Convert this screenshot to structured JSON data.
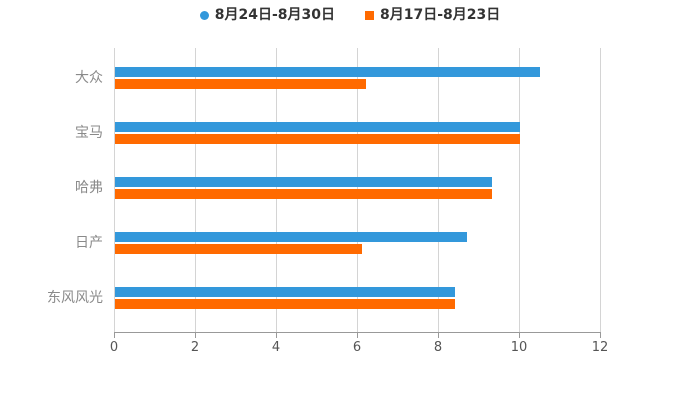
{
  "chart_data": {
    "type": "bar",
    "orientation": "horizontal",
    "title": "",
    "xlabel": "",
    "ylabel": "",
    "categories": [
      "大众",
      "宝马",
      "哈弗",
      "日产",
      "东风风光"
    ],
    "series": [
      {
        "name": "8月24日-8月30日",
        "marker": "circle",
        "color": "#3398DB",
        "values": [
          10.5,
          10.0,
          9.3,
          8.7,
          8.4
        ]
      },
      {
        "name": "8月17日-8月23日",
        "marker": "square",
        "color": "#FF6A00",
        "values": [
          6.2,
          10.0,
          9.3,
          6.1,
          8.4
        ]
      }
    ],
    "xlim": [
      0,
      12
    ],
    "x_ticks": [
      0,
      2,
      4,
      6,
      8,
      10,
      12
    ],
    "grid": true,
    "legend_position": "top",
    "style": {
      "background": "#FFFFFF",
      "grid_color": "#D4D4D4",
      "axis_color": "#999999",
      "tick_label_color": "#555555",
      "category_label_color": "#8A8A8A",
      "legend_text_color": "#333333"
    }
  }
}
